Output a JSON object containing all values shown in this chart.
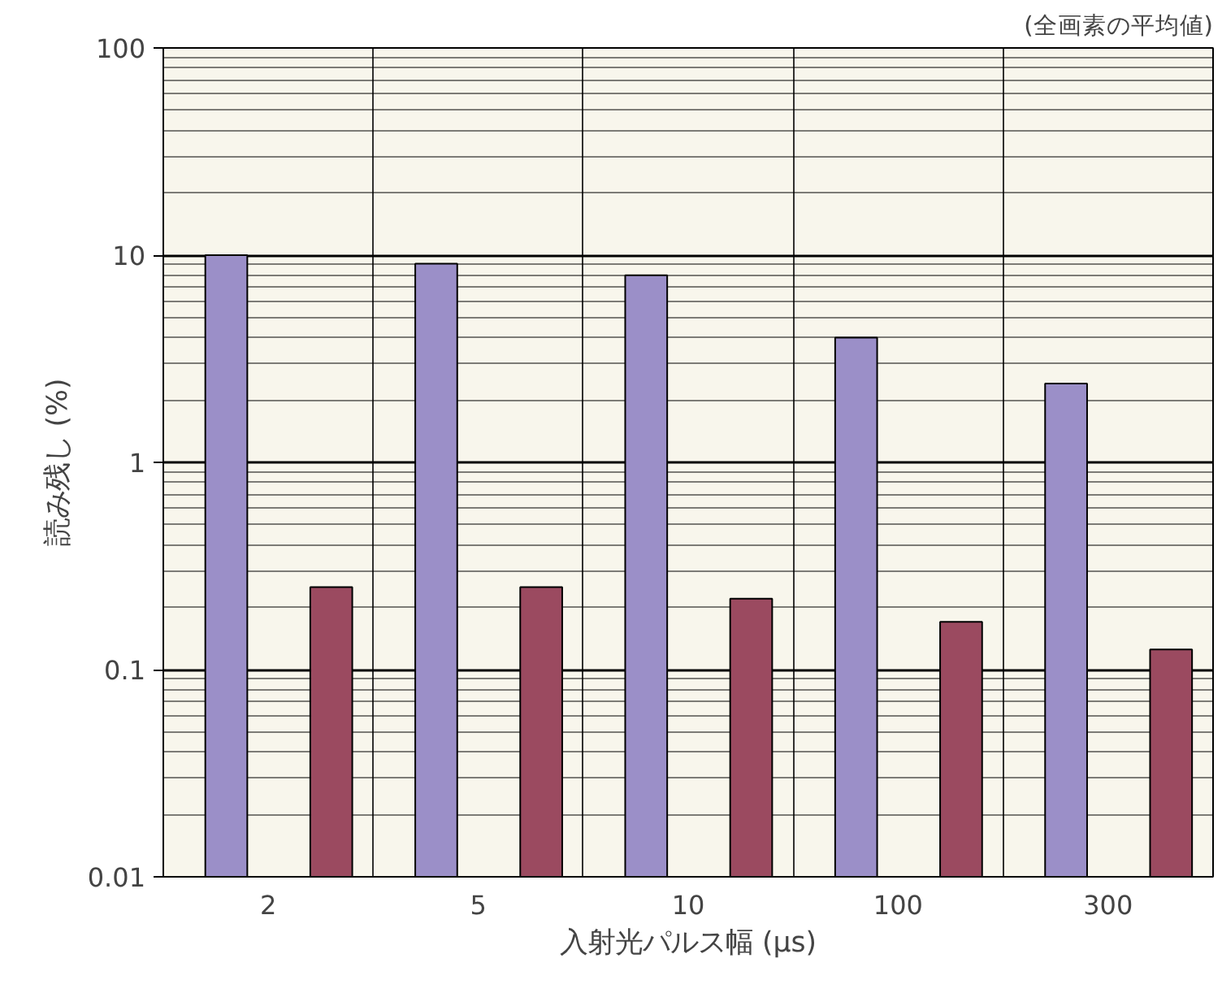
{
  "chart_data": {
    "type": "bar",
    "xlabel": "入射光パルス幅 (µs)",
    "ylabel": "読み残し (%)",
    "annotations": [
      "(全画素の平均値)"
    ],
    "categories": [
      "2",
      "5",
      "10",
      "100",
      "300"
    ],
    "series": [
      {
        "color": "#9b8fc8",
        "values": [
          10,
          9.1,
          8,
          4,
          2.4
        ]
      },
      {
        "color": "#9b4a60",
        "values": [
          0.25,
          0.25,
          0.22,
          0.17,
          0.125
        ]
      }
    ],
    "log": "y",
    "ylim": [
      0.01,
      100
    ],
    "yticks": [
      0.01,
      0.1,
      1,
      10,
      100
    ],
    "grid": true
  }
}
